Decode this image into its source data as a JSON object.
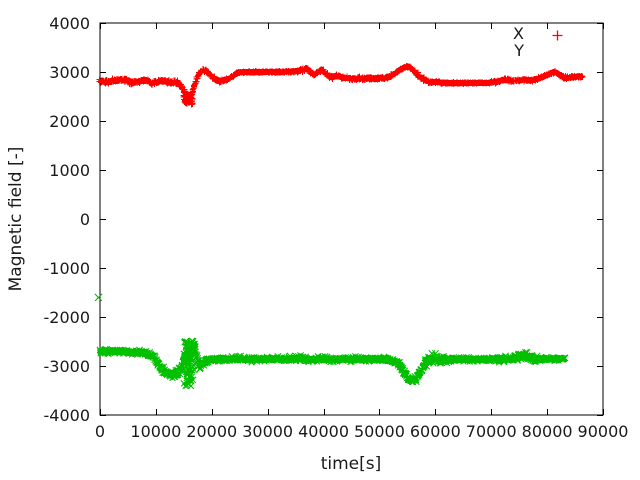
{
  "chart_data": {
    "type": "scatter",
    "title": "",
    "xlabel": "time[s]",
    "ylabel": "Magnetic field [-]",
    "xlim": [
      0,
      90000
    ],
    "ylim": [
      -4000,
      4000
    ],
    "grid": false,
    "background": "#ffffff",
    "axis_color": "#000000",
    "text_color": "#1a1a1a",
    "legend_position": "top-right-inside",
    "xtick_values": [
      0,
      10000,
      20000,
      30000,
      40000,
      50000,
      60000,
      70000,
      80000,
      90000
    ],
    "xtick_labels": [
      "0",
      "10000",
      "20000",
      "30000",
      "40000",
      "50000",
      "60000",
      "70000",
      "80000",
      "90000"
    ],
    "ytick_values": [
      -4000,
      -3000,
      -2000,
      -1000,
      0,
      1000,
      2000,
      3000,
      4000
    ],
    "ytick_labels": [
      "-4000",
      "-3000",
      "-2000",
      "-1000",
      "0",
      "1000",
      "2000",
      "3000",
      "4000"
    ],
    "legend": [
      {
        "label": "X",
        "marker": "plus",
        "color": "#ff0000",
        "sample_visible": true
      },
      {
        "label": "Y",
        "marker": "cross",
        "color": "#00c000",
        "sample_visible": false
      }
    ],
    "series": [
      {
        "name": "X",
        "marker": "plus",
        "color": "#ff0000",
        "points_format": [
          "time_s",
          "value",
          "noise_halfwidth"
        ],
        "points": [
          [
            0,
            2820,
            60
          ],
          [
            1500,
            2800,
            65
          ],
          [
            3000,
            2830,
            60
          ],
          [
            4500,
            2840,
            55
          ],
          [
            5500,
            2790,
            65
          ],
          [
            6500,
            2800,
            60
          ],
          [
            7500,
            2830,
            55
          ],
          [
            8500,
            2820,
            55
          ],
          [
            9200,
            2770,
            65
          ],
          [
            10000,
            2790,
            60
          ],
          [
            11000,
            2830,
            55
          ],
          [
            12000,
            2790,
            60
          ],
          [
            13000,
            2800,
            60
          ],
          [
            14000,
            2770,
            75
          ],
          [
            14600,
            2700,
            100
          ],
          [
            15000,
            2610,
            110
          ],
          [
            15400,
            2530,
            100
          ],
          [
            15800,
            2490,
            80
          ],
          [
            16200,
            2520,
            95
          ],
          [
            16600,
            2610,
            105
          ],
          [
            17000,
            2740,
            90
          ],
          [
            17400,
            2880,
            65
          ],
          [
            17900,
            2990,
            50
          ],
          [
            18400,
            3040,
            40
          ],
          [
            19000,
            3020,
            45
          ],
          [
            19600,
            2950,
            50
          ],
          [
            20200,
            2880,
            50
          ],
          [
            21000,
            2830,
            50
          ],
          [
            22000,
            2820,
            50
          ],
          [
            23000,
            2860,
            45
          ],
          [
            24000,
            2940,
            40
          ],
          [
            24800,
            2990,
            32
          ],
          [
            26000,
            3000,
            28
          ],
          [
            28000,
            3000,
            26
          ],
          [
            30000,
            3000,
            26
          ],
          [
            32000,
            3000,
            26
          ],
          [
            34000,
            3005,
            28
          ],
          [
            35500,
            3015,
            35
          ],
          [
            36300,
            3050,
            50
          ],
          [
            37000,
            3070,
            55
          ],
          [
            37700,
            3000,
            60
          ],
          [
            38300,
            2950,
            55
          ],
          [
            39000,
            3000,
            55
          ],
          [
            39700,
            3050,
            50
          ],
          [
            40400,
            2960,
            55
          ],
          [
            41000,
            2890,
            55
          ],
          [
            41800,
            2900,
            50
          ],
          [
            42600,
            2920,
            48
          ],
          [
            43400,
            2890,
            48
          ],
          [
            44200,
            2870,
            48
          ],
          [
            45000,
            2860,
            48
          ],
          [
            46000,
            2865,
            50
          ],
          [
            47000,
            2860,
            52
          ],
          [
            48000,
            2870,
            52
          ],
          [
            49000,
            2860,
            52
          ],
          [
            50000,
            2865,
            50
          ],
          [
            51000,
            2880,
            48
          ],
          [
            52000,
            2915,
            45
          ],
          [
            52800,
            2970,
            42
          ],
          [
            53600,
            3040,
            40
          ],
          [
            54400,
            3090,
            40
          ],
          [
            55000,
            3110,
            42
          ],
          [
            55600,
            3080,
            45
          ],
          [
            56200,
            3020,
            50
          ],
          [
            56900,
            2940,
            52
          ],
          [
            57600,
            2870,
            52
          ],
          [
            58300,
            2820,
            48
          ],
          [
            59000,
            2795,
            42
          ],
          [
            60000,
            2795,
            38
          ],
          [
            61000,
            2780,
            30
          ],
          [
            62500,
            2775,
            26
          ],
          [
            64000,
            2775,
            25
          ],
          [
            66000,
            2775,
            25
          ],
          [
            68000,
            2778,
            25
          ],
          [
            69500,
            2782,
            27
          ],
          [
            70500,
            2795,
            32
          ],
          [
            71500,
            2815,
            38
          ],
          [
            72300,
            2845,
            42
          ],
          [
            73000,
            2835,
            40
          ],
          [
            74000,
            2820,
            38
          ],
          [
            75000,
            2830,
            38
          ],
          [
            76000,
            2840,
            40
          ],
          [
            77000,
            2830,
            40
          ],
          [
            78000,
            2850,
            42
          ],
          [
            79000,
            2890,
            45
          ],
          [
            79800,
            2930,
            45
          ],
          [
            80600,
            2975,
            45
          ],
          [
            81300,
            3000,
            45
          ],
          [
            82000,
            2960,
            45
          ],
          [
            82800,
            2905,
            45
          ],
          [
            83600,
            2885,
            45
          ],
          [
            84400,
            2900,
            45
          ],
          [
            85300,
            2910,
            42
          ],
          [
            86400,
            2900,
            40
          ]
        ],
        "extra_scatter": {
          "t_min": 14900,
          "t_max": 16600,
          "v_min": 2340,
          "v_max": 2560,
          "count": 55
        },
        "outliers": []
      },
      {
        "name": "Y",
        "marker": "cross",
        "color": "#00c000",
        "points_format": [
          "time_s",
          "value",
          "noise_halfwidth"
        ],
        "points": [
          [
            0,
            -2700,
            60
          ],
          [
            1500,
            -2710,
            60
          ],
          [
            3000,
            -2700,
            60
          ],
          [
            4500,
            -2715,
            60
          ],
          [
            6000,
            -2725,
            60
          ],
          [
            7500,
            -2720,
            60
          ],
          [
            8800,
            -2750,
            70
          ],
          [
            9600,
            -2830,
            85
          ],
          [
            10400,
            -2960,
            95
          ],
          [
            11200,
            -3080,
            95
          ],
          [
            12000,
            -3150,
            95
          ],
          [
            12800,
            -3190,
            95
          ],
          [
            13600,
            -3160,
            110
          ],
          [
            14300,
            -3090,
            130
          ],
          [
            14900,
            -2950,
            180
          ],
          [
            15400,
            -2750,
            260
          ],
          [
            15900,
            -2590,
            160
          ],
          [
            16400,
            -2560,
            120
          ],
          [
            16900,
            -2640,
            160
          ],
          [
            17300,
            -2850,
            160
          ],
          [
            17800,
            -2990,
            110
          ],
          [
            18400,
            -2950,
            85
          ],
          [
            19200,
            -2890,
            75
          ],
          [
            20000,
            -2870,
            70
          ],
          [
            21500,
            -2860,
            68
          ],
          [
            23000,
            -2870,
            68
          ],
          [
            25000,
            -2860,
            66
          ],
          [
            27000,
            -2870,
            64
          ],
          [
            29000,
            -2862,
            64
          ],
          [
            31000,
            -2868,
            64
          ],
          [
            33000,
            -2862,
            64
          ],
          [
            35000,
            -2858,
            70
          ],
          [
            36000,
            -2850,
            85
          ],
          [
            37000,
            -2872,
            95
          ],
          [
            38000,
            -2885,
            85
          ],
          [
            39000,
            -2862,
            72
          ],
          [
            40000,
            -2870,
            70
          ],
          [
            41500,
            -2878,
            68
          ],
          [
            43000,
            -2862,
            66
          ],
          [
            44500,
            -2870,
            66
          ],
          [
            46000,
            -2862,
            66
          ],
          [
            47500,
            -2868,
            66
          ],
          [
            49000,
            -2865,
            66
          ],
          [
            50500,
            -2862,
            66
          ],
          [
            52000,
            -2880,
            68
          ],
          [
            53000,
            -2925,
            75
          ],
          [
            53800,
            -3010,
            85
          ],
          [
            54600,
            -3170,
            90
          ],
          [
            55300,
            -3280,
            80
          ],
          [
            56000,
            -3310,
            70
          ],
          [
            56700,
            -3240,
            85
          ],
          [
            57400,
            -3110,
            95
          ],
          [
            58100,
            -2960,
            110
          ],
          [
            58800,
            -2872,
            135
          ],
          [
            59600,
            -2850,
            150
          ],
          [
            60300,
            -2870,
            130
          ],
          [
            61100,
            -2872,
            95
          ],
          [
            62000,
            -2870,
            75
          ],
          [
            63500,
            -2870,
            68
          ],
          [
            65000,
            -2868,
            66
          ],
          [
            67000,
            -2870,
            66
          ],
          [
            69000,
            -2870,
            66
          ],
          [
            71000,
            -2868,
            66
          ],
          [
            73000,
            -2862,
            72
          ],
          [
            74200,
            -2830,
            95
          ],
          [
            75200,
            -2795,
            115
          ],
          [
            76000,
            -2790,
            120
          ],
          [
            76800,
            -2825,
            105
          ],
          [
            77700,
            -2860,
            85
          ],
          [
            78700,
            -2868,
            72
          ],
          [
            79700,
            -2868,
            70
          ],
          [
            80700,
            -2858,
            70
          ],
          [
            81700,
            -2850,
            72
          ],
          [
            82600,
            -2845,
            68
          ],
          [
            83200,
            -2840,
            62
          ]
        ],
        "extra_scatter": {
          "t_min": 15000,
          "t_max": 16900,
          "v_min": -3420,
          "v_max": -2480,
          "count": 75
        },
        "outliers": [
          [
            -300,
            -1600
          ]
        ]
      }
    ]
  }
}
